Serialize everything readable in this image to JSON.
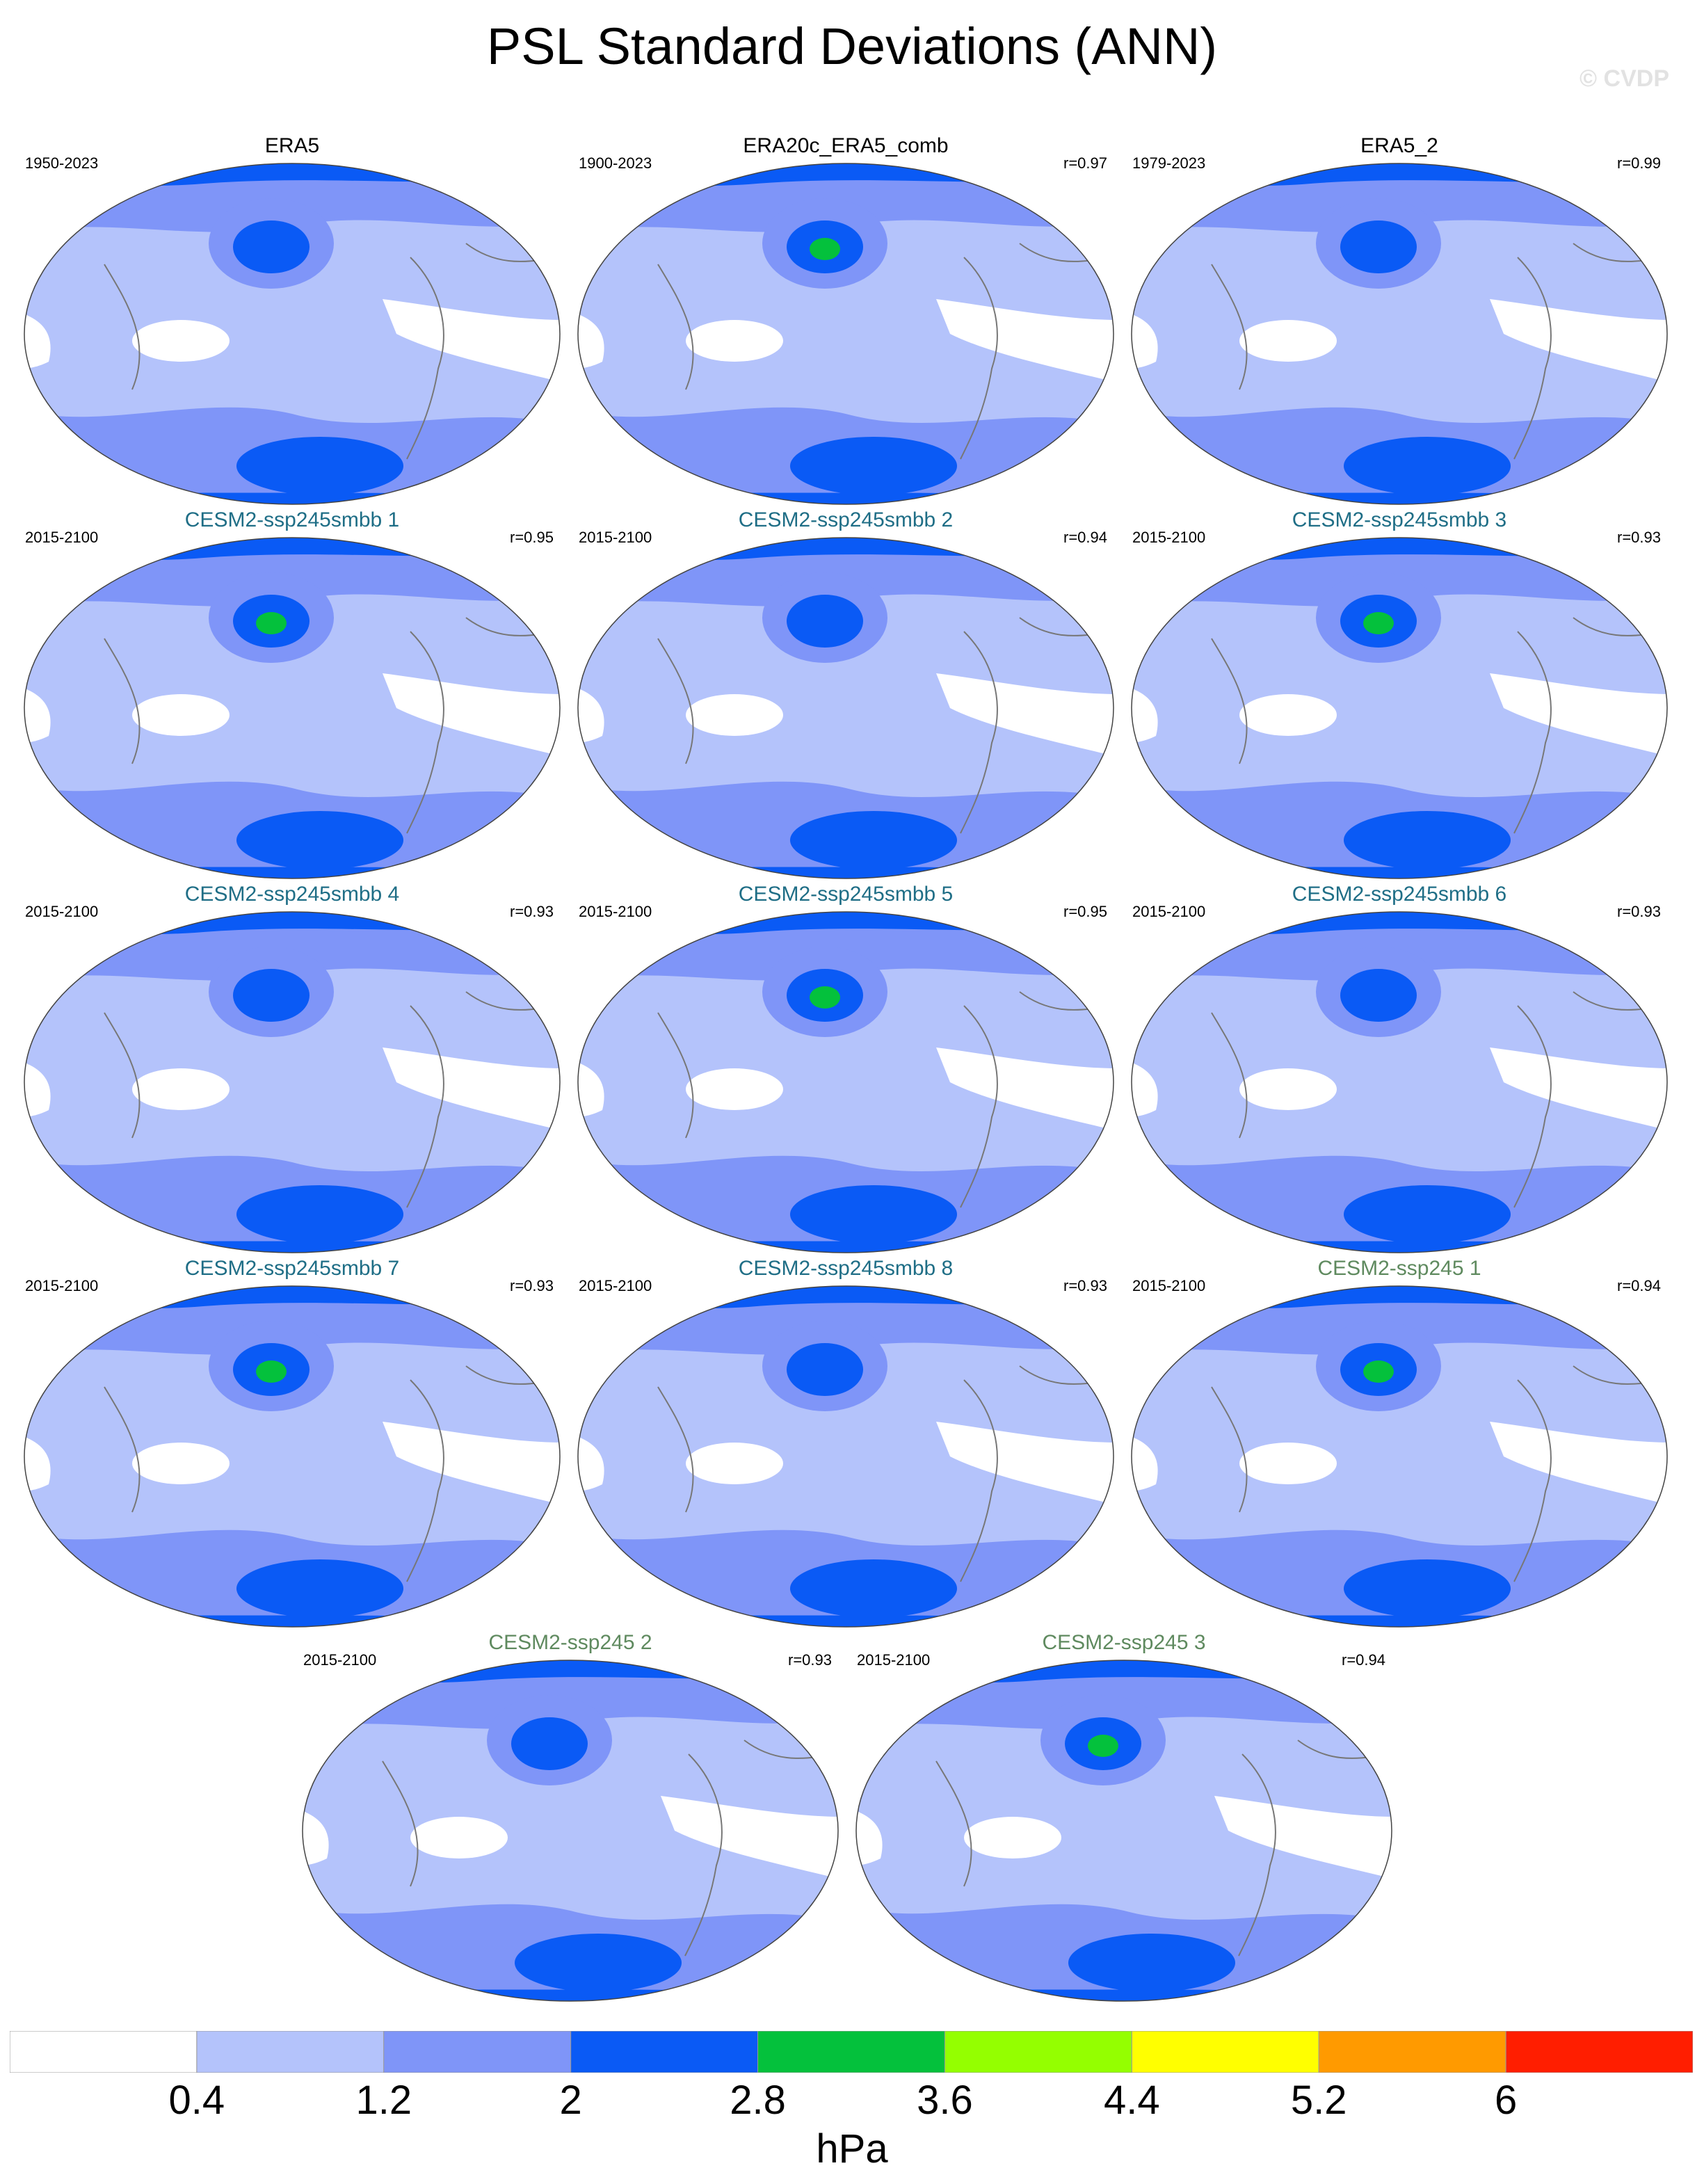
{
  "figure": {
    "title": "PSL Standard Deviations (ANN)",
    "credit": "© CVDP"
  },
  "panels": [
    {
      "title": "ERA5",
      "period": "1950-2023",
      "corr": "",
      "group": "obs"
    },
    {
      "title": "ERA20c_ERA5_comb",
      "period": "1900-2023",
      "corr": "r=0.97",
      "group": "obs"
    },
    {
      "title": "ERA5_2",
      "period": "1979-2023",
      "corr": "r=0.99",
      "group": "obs"
    },
    {
      "title": "CESM2-ssp245smbb 1",
      "period": "2015-2100",
      "corr": "r=0.95",
      "group": "smbb"
    },
    {
      "title": "CESM2-ssp245smbb 2",
      "period": "2015-2100",
      "corr": "r=0.94",
      "group": "smbb"
    },
    {
      "title": "CESM2-ssp245smbb 3",
      "period": "2015-2100",
      "corr": "r=0.93",
      "group": "smbb"
    },
    {
      "title": "CESM2-ssp245smbb 4",
      "period": "2015-2100",
      "corr": "r=0.93",
      "group": "smbb"
    },
    {
      "title": "CESM2-ssp245smbb 5",
      "period": "2015-2100",
      "corr": "r=0.95",
      "group": "smbb"
    },
    {
      "title": "CESM2-ssp245smbb 6",
      "period": "2015-2100",
      "corr": "r=0.93",
      "group": "smbb"
    },
    {
      "title": "CESM2-ssp245smbb 7",
      "period": "2015-2100",
      "corr": "r=0.93",
      "group": "smbb"
    },
    {
      "title": "CESM2-ssp245smbb 8",
      "period": "2015-2100",
      "corr": "r=0.93",
      "group": "smbb"
    },
    {
      "title": "CESM2-ssp245 1",
      "period": "2015-2100",
      "corr": "r=0.94",
      "group": "ssp"
    },
    {
      "title": "CESM2-ssp245 2",
      "period": "2015-2100",
      "corr": "r=0.93",
      "group": "ssp"
    },
    {
      "title": "CESM2-ssp245 3",
      "period": "2015-2100",
      "corr": "r=0.94",
      "group": "ssp"
    }
  ],
  "colorbar": {
    "levels": [
      "0.4",
      "1.2",
      "2",
      "2.8",
      "3.6",
      "4.4",
      "5.2",
      "6"
    ],
    "colors": [
      "#ffffff",
      "#b4c3fb",
      "#7f95f8",
      "#0a5af5",
      "#04c13c",
      "#94ff00",
      "#ffff00",
      "#ff9a00",
      "#ff1e00"
    ],
    "units": "hPa"
  }
}
